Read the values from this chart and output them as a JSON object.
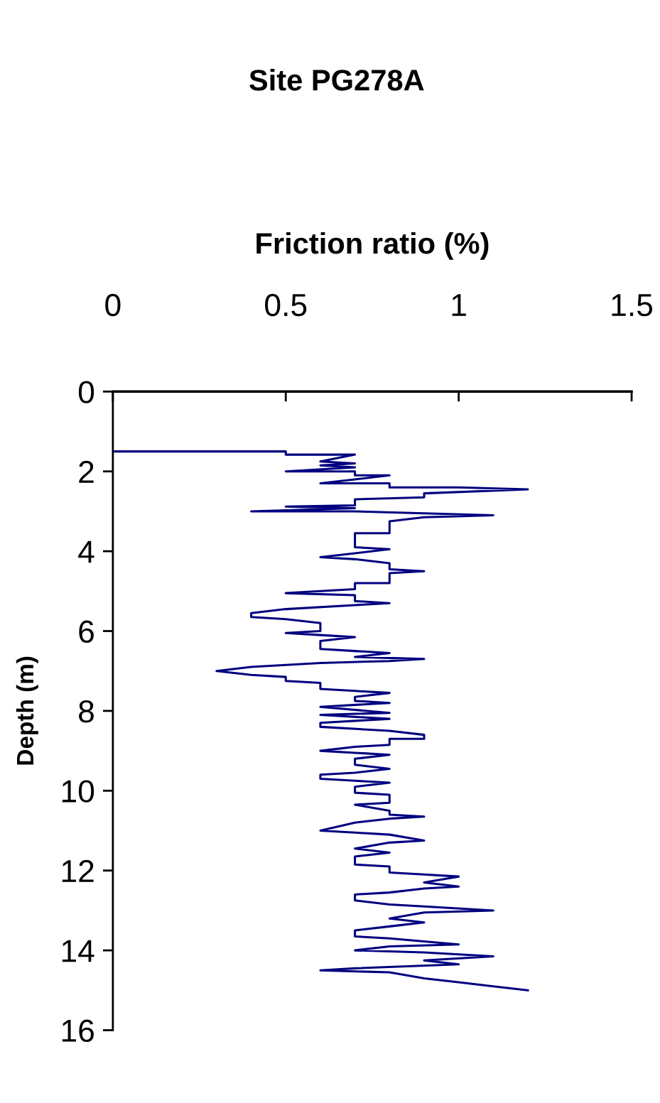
{
  "chart_data": {
    "type": "line",
    "title": "Site PG278A",
    "xlabel": "Friction ratio (%)",
    "ylabel": "Depth (m)",
    "xlim": [
      0,
      1.5
    ],
    "xticks": [
      0,
      0.5,
      1,
      1.5
    ],
    "ylim": [
      16,
      0
    ],
    "yticks": [
      0,
      2,
      4,
      6,
      8,
      10,
      12,
      14,
      16
    ],
    "grid": false,
    "legend": false,
    "marker": "none",
    "line_style": "solid",
    "series": [
      {
        "color": "#000080",
        "x": [
          0,
          0.5,
          0.5,
          0.7,
          0.6,
          0.7,
          0.6,
          0.7,
          0.5,
          0.7,
          0.7,
          0.8,
          0.7,
          0.6,
          0.8,
          0.8,
          1.0,
          1.2,
          0.9,
          0.9,
          0.7,
          0.7,
          0.5,
          0.7,
          0.4,
          0.7,
          0.9,
          1.1,
          0.9,
          0.8,
          0.8,
          0.7,
          0.7,
          0.8,
          0.7,
          0.6,
          0.7,
          0.8,
          0.8,
          0.9,
          0.8,
          0.8,
          0.7,
          0.7,
          0.6,
          0.5,
          0.7,
          0.7,
          0.8,
          0.7,
          0.5,
          0.4,
          0.4,
          0.5,
          0.6,
          0.6,
          0.5,
          0.6,
          0.7,
          0.6,
          0.6,
          0.7,
          0.8,
          0.7,
          0.9,
          0.8,
          0.6,
          0.5,
          0.4,
          0.3,
          0.4,
          0.5,
          0.5,
          0.6,
          0.6,
          0.7,
          0.8,
          0.7,
          0.7,
          0.8,
          0.6,
          0.8,
          0.6,
          0.8,
          0.6,
          0.6,
          0.8,
          0.9,
          0.9,
          0.8,
          0.8,
          0.7,
          0.6,
          0.7,
          0.8,
          0.7,
          0.7,
          0.8,
          0.7,
          0.6,
          0.6,
          0.7,
          0.8,
          0.7,
          0.7,
          0.8,
          0.8,
          0.7,
          0.8,
          0.8,
          0.9,
          0.8,
          0.7,
          0.6,
          0.7,
          0.8,
          0.9,
          0.8,
          0.7,
          0.8,
          0.7,
          0.7,
          0.8,
          0.8,
          0.9,
          1.0,
          0.9,
          1.0,
          0.9,
          0.8,
          0.7,
          0.7,
          0.8,
          0.9,
          1.1,
          0.9,
          0.8,
          0.9,
          0.8,
          0.7,
          0.7,
          0.8,
          1.0,
          0.8,
          0.7,
          0.9,
          1.1,
          0.9,
          1.0,
          0.7,
          0.6,
          0.8,
          0.9,
          1.0,
          1.1,
          1.2
        ],
        "values": [
          1.5,
          1.5,
          1.58,
          1.58,
          1.75,
          1.8,
          1.85,
          1.9,
          2.0,
          2.0,
          2.1,
          2.1,
          2.2,
          2.3,
          2.3,
          2.4,
          2.4,
          2.45,
          2.55,
          2.65,
          2.7,
          2.85,
          2.88,
          2.92,
          3.0,
          3.0,
          3.05,
          3.1,
          3.15,
          3.25,
          3.55,
          3.55,
          3.9,
          3.95,
          4.05,
          4.15,
          4.2,
          4.3,
          4.45,
          4.5,
          4.55,
          4.8,
          4.8,
          4.95,
          5.0,
          5.05,
          5.1,
          5.25,
          5.3,
          5.35,
          5.45,
          5.55,
          5.65,
          5.7,
          5.8,
          6.0,
          6.05,
          6.1,
          6.15,
          6.25,
          6.45,
          6.5,
          6.55,
          6.65,
          6.7,
          6.75,
          6.8,
          6.85,
          6.9,
          7.0,
          7.1,
          7.15,
          7.25,
          7.3,
          7.45,
          7.5,
          7.55,
          7.65,
          7.75,
          7.8,
          7.9,
          8.05,
          8.1,
          8.2,
          8.3,
          8.4,
          8.5,
          8.6,
          8.7,
          8.7,
          8.85,
          8.9,
          9.0,
          9.05,
          9.1,
          9.2,
          9.35,
          9.45,
          9.55,
          9.6,
          9.7,
          9.75,
          9.8,
          9.9,
          10.05,
          10.1,
          10.3,
          10.35,
          10.5,
          10.6,
          10.65,
          10.7,
          10.8,
          11.0,
          11.05,
          11.1,
          11.25,
          11.3,
          11.45,
          11.55,
          11.65,
          11.85,
          11.9,
          12.05,
          12.1,
          12.15,
          12.3,
          12.4,
          12.45,
          12.55,
          12.6,
          12.75,
          12.85,
          12.9,
          13.0,
          13.05,
          13.2,
          13.3,
          13.4,
          13.5,
          13.65,
          13.7,
          13.85,
          13.9,
          14.0,
          14.05,
          14.15,
          14.25,
          14.35,
          14.45,
          14.5,
          14.55,
          14.7,
          14.8,
          14.9,
          15.0
        ]
      }
    ]
  }
}
